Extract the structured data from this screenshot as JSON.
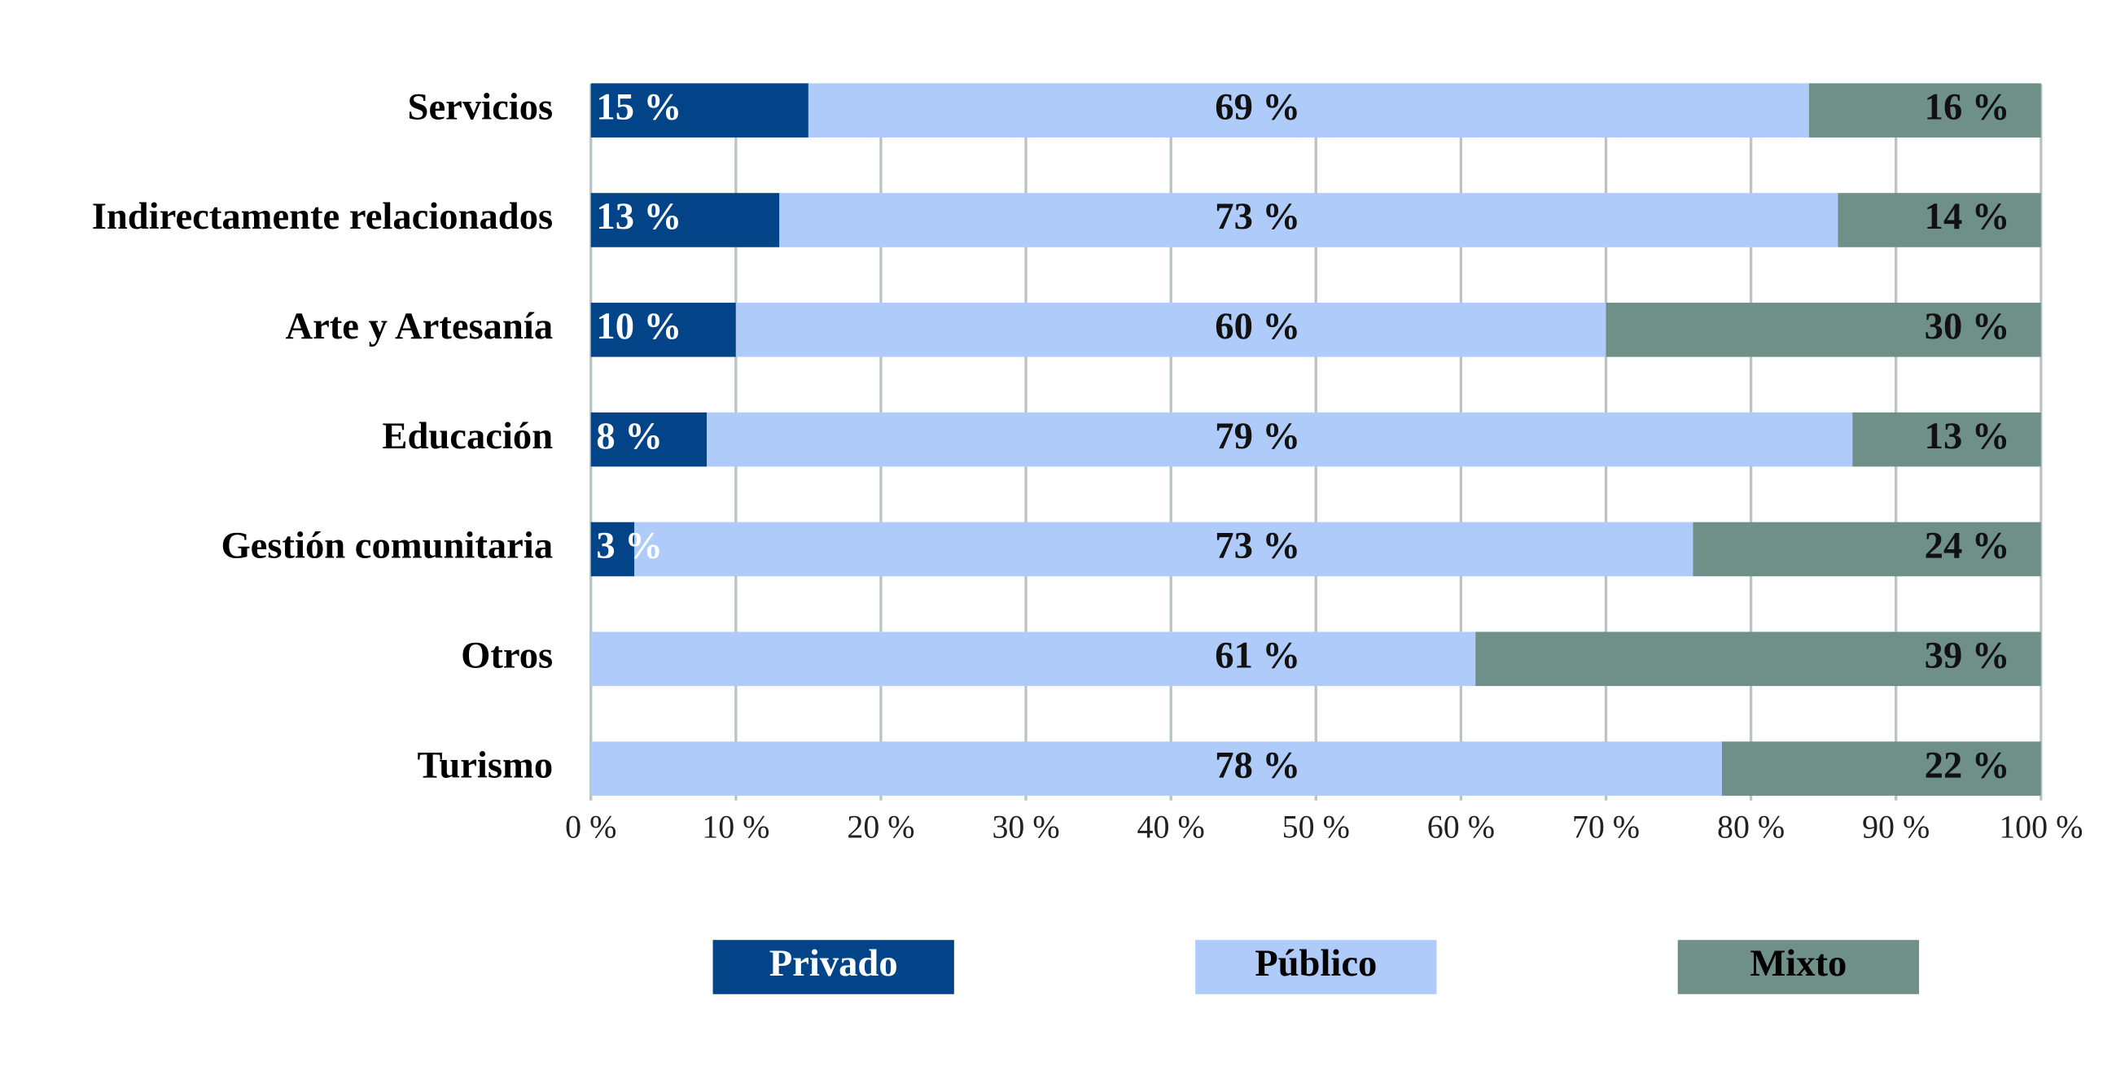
{
  "chart_data": {
    "type": "stacked_bar",
    "orientation": "horizontal",
    "categories": [
      "Servicios",
      "Indirectamente relacionados",
      "Arte y Artesanía",
      "Educación",
      "Gestión comunitaria",
      "Otros",
      "Turismo"
    ],
    "series": [
      {
        "name": "Privado",
        "color": "#034488",
        "values": [
          15,
          13,
          10,
          8,
          3,
          null,
          null
        ],
        "value_labels": [
          "15 %",
          "13 %",
          "10 %",
          "8 %",
          "3 %",
          null,
          null
        ]
      },
      {
        "name": "Público",
        "color": "#aecbfa",
        "values": [
          69,
          73,
          60,
          79,
          73,
          61,
          78
        ],
        "value_labels": [
          "69 %",
          "73 %",
          "60 %",
          "79 %",
          "73 %",
          "61 %",
          "78 %"
        ]
      },
      {
        "name": "Mixto",
        "color": "#6f9088",
        "values": [
          16,
          14,
          30,
          13,
          24,
          39,
          22
        ],
        "value_labels": [
          "16 %",
          "14 %",
          "30 %",
          "13 %",
          "24 %",
          "39 %",
          "22 %"
        ]
      }
    ],
    "xlim": [
      0,
      100
    ],
    "xticks": [
      {
        "value": 0,
        "label": "0 %"
      },
      {
        "value": 10,
        "label": "10 %"
      },
      {
        "value": 20,
        "label": "20 %"
      },
      {
        "value": 30,
        "label": "30 %"
      },
      {
        "value": 40,
        "label": "40 %"
      },
      {
        "value": 50,
        "label": "50 %"
      },
      {
        "value": 60,
        "label": "60 %"
      },
      {
        "value": 70,
        "label": "70 %"
      },
      {
        "value": 80,
        "label": "80 %"
      },
      {
        "value": 90,
        "label": "90 %"
      },
      {
        "value": 100,
        "label": "100 %"
      }
    ],
    "grid": true,
    "legend": "bottom"
  }
}
